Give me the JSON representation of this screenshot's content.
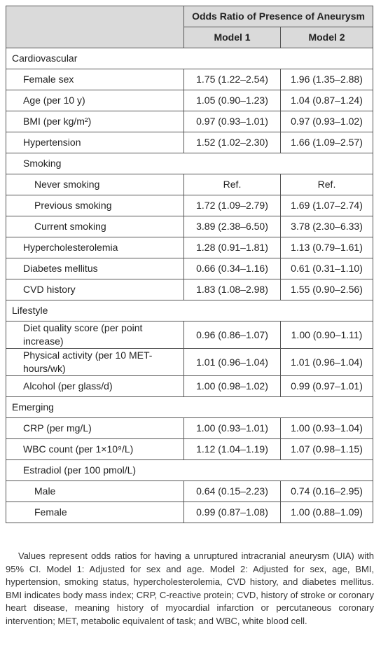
{
  "table": {
    "header": {
      "group": "Odds Ratio of Presence of Aneurysm",
      "columns": [
        "Model 1",
        "Model 2"
      ]
    },
    "sections": [
      {
        "title": "Cardiovascular",
        "rows": [
          {
            "label": "Female sex",
            "values": [
              "1.75 (1.22–2.54)",
              "1.96 (1.35–2.88)"
            ]
          },
          {
            "label": "Age (per 10 y)",
            "values": [
              "1.05 (0.90–1.23)",
              "1.04 (0.87–1.24)"
            ]
          },
          {
            "label": "BMI (per kg/m²)",
            "values": [
              "0.97 (0.93–1.01)",
              "0.97 (0.93–1.02)"
            ]
          },
          {
            "label": "Hypertension",
            "values": [
              "1.52 (1.02–2.30)",
              "1.66 (1.09–2.57)"
            ]
          },
          {
            "label": "Smoking",
            "rows": [
              {
                "label": "Never smoking",
                "values": [
                  "Ref.",
                  "Ref."
                ]
              },
              {
                "label": "Previous smoking",
                "values": [
                  "1.72 (1.09–2.79)",
                  "1.69 (1.07–2.74)"
                ]
              },
              {
                "label": "Current smoking",
                "values": [
                  "3.89 (2.38–6.50)",
                  "3.78 (2.30–6.33)"
                ]
              }
            ]
          },
          {
            "label": "Hypercholesterolemia",
            "values": [
              "1.28 (0.91–1.81)",
              "1.13 (0.79–1.61)"
            ]
          },
          {
            "label": "Diabetes mellitus",
            "values": [
              "0.66 (0.34–1.16)",
              "0.61 (0.31–1.10)"
            ]
          },
          {
            "label": "CVD history",
            "values": [
              "1.83 (1.08–2.98)",
              "1.55 (0.90–2.56)"
            ]
          }
        ]
      },
      {
        "title": "Lifestyle",
        "rows": [
          {
            "label": "Diet quality score (per point increase)",
            "values": [
              "0.96 (0.86–1.07)",
              "1.00 (0.90–1.11)"
            ]
          },
          {
            "label": "Physical activity (per 10 MET-hours/wk)",
            "values": [
              "1.01 (0.96–1.04)",
              "1.01 (0.96–1.04)"
            ]
          },
          {
            "label": "Alcohol (per glass/d)",
            "values": [
              "1.00 (0.98–1.02)",
              "0.99 (0.97–1.01)"
            ]
          }
        ]
      },
      {
        "title": "Emerging",
        "rows": [
          {
            "label": "CRP (per mg/L)",
            "values": [
              "1.00 (0.93–1.01)",
              "1.00 (0.93–1.04)"
            ]
          },
          {
            "label": "WBC count (per 1×10⁹/L)",
            "values": [
              "1.12 (1.04–1.19)",
              "1.07 (0.98–1.15)"
            ]
          },
          {
            "label": "Estradiol (per 100 pmol/L)",
            "rows": [
              {
                "label": "Male",
                "values": [
                  "0.64 (0.15–2.23)",
                  "0.74 (0.16–2.95)"
                ]
              },
              {
                "label": "Female",
                "values": [
                  "0.99 (0.87–1.08)",
                  "1.00 (0.88–1.09)"
                ]
              }
            ]
          }
        ]
      }
    ]
  },
  "footnote": "Values represent odds ratios for having a unruptured intracranial aneurysm (UIA) with 95% CI. Model 1: Adjusted for sex and age. Model 2: Adjusted for sex, age, BMI, hypertension, smoking status, hypercholesterolemia, CVD history, and diabetes mellitus. BMI indicates body mass index; CRP, C-reactive protein; CVD, history of stroke or coronary heart disease, meaning history of myocardial infarction or percutaneous coronary intervention; MET, metabolic equivalent of task; and WBC, white blood cell."
}
